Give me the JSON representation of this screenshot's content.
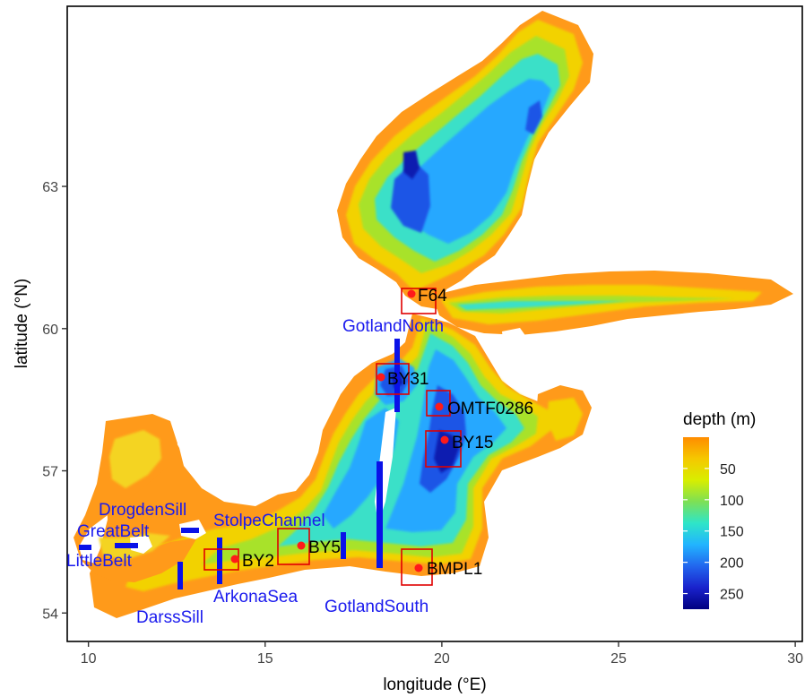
{
  "axes": {
    "xlabel": "longitude (°E)",
    "ylabel": "latitude (°N)",
    "xlim": [
      9.4,
      30.2
    ],
    "ylim": [
      53.4,
      66.8
    ],
    "xticks": [
      10,
      15,
      20,
      25,
      30
    ],
    "yticks": [
      54,
      57,
      60,
      63
    ]
  },
  "legend": {
    "title": "depth (m)",
    "labels": [
      "50",
      "100",
      "150",
      "200",
      "250"
    ],
    "range": [
      0,
      275
    ],
    "colors": [
      "#ff8c00",
      "#f5c800",
      "#d8ee00",
      "#7de055",
      "#2ee5c8",
      "#22b4ff",
      "#2266ee",
      "#1a22cc",
      "#000080"
    ]
  },
  "stations": [
    {
      "name": "F64",
      "lon": 19.1,
      "lat": 60.2
    },
    {
      "name": "BY31",
      "lon": 18.2,
      "lat": 58.6
    },
    {
      "name": "OMTF0286",
      "lon": 19.9,
      "lat": 58.0
    },
    {
      "name": "BY15",
      "lon": 20.1,
      "lat": 57.35
    },
    {
      "name": "BY5",
      "lon": 15.95,
      "lat": 55.25
    },
    {
      "name": "BY2",
      "lon": 14.05,
      "lat": 55.0
    },
    {
      "name": "BMPL1",
      "lon": 19.2,
      "lat": 54.85
    }
  ],
  "transects": [
    {
      "name": "LittleBelt"
    },
    {
      "name": "GreatBelt"
    },
    {
      "name": "DrogdenSill"
    },
    {
      "name": "DarssSill"
    },
    {
      "name": "ArkonaSea"
    },
    {
      "name": "StolpeChannel"
    },
    {
      "name": "GotlandSouth"
    },
    {
      "name": "GotlandNorth"
    }
  ],
  "colors": {
    "station_dot": "#ff1a1a",
    "station_box": "#e00000",
    "transect": "#0a12e8",
    "transect_label": "#1a1aee"
  }
}
